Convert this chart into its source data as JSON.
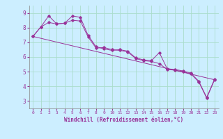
{
  "xlabel": "Windchill (Refroidissement éolien,°C)",
  "background_color": "#cceeff",
  "grid_color": "#aaddcc",
  "line_color": "#993399",
  "xlim": [
    -0.5,
    23.5
  ],
  "ylim": [
    2.5,
    9.5
  ],
  "yticks": [
    3,
    4,
    5,
    6,
    7,
    8,
    9
  ],
  "xticks": [
    0,
    1,
    2,
    3,
    4,
    5,
    6,
    7,
    8,
    9,
    10,
    11,
    12,
    13,
    14,
    15,
    16,
    17,
    18,
    19,
    20,
    21,
    22,
    23
  ],
  "line1_x": [
    0,
    1,
    2,
    3,
    4,
    5,
    6,
    7,
    8,
    9,
    10,
    11,
    12,
    13,
    14,
    15,
    16,
    17,
    18,
    19,
    20,
    21,
    22,
    23
  ],
  "line1_y": [
    7.4,
    8.05,
    8.8,
    8.25,
    8.3,
    8.8,
    8.7,
    7.45,
    6.7,
    6.55,
    6.45,
    6.5,
    6.4,
    5.95,
    5.8,
    5.75,
    6.3,
    5.2,
    5.15,
    5.05,
    4.9,
    4.35,
    3.25,
    4.5
  ],
  "line2_x": [
    0,
    1,
    2,
    3,
    4,
    5,
    6,
    7,
    8,
    9,
    10,
    11,
    12,
    13,
    14,
    15,
    16,
    17,
    18,
    19,
    20,
    21,
    22,
    23
  ],
  "line2_y": [
    7.4,
    8.05,
    8.35,
    8.25,
    8.3,
    8.5,
    8.45,
    7.35,
    6.6,
    6.65,
    6.5,
    6.45,
    6.35,
    5.9,
    5.75,
    5.7,
    5.55,
    5.15,
    5.1,
    5.0,
    4.85,
    4.3,
    3.2,
    4.45
  ],
  "line3_x": [
    0,
    23
  ],
  "line3_y": [
    7.4,
    4.45
  ]
}
